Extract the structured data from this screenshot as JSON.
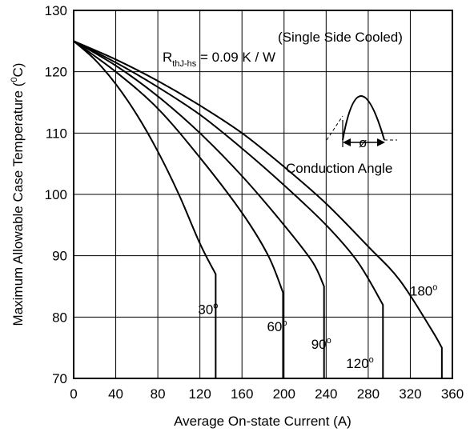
{
  "chart_data": {
    "type": "line",
    "xlabel": "Average On-state Current (A)",
    "ylabel": "Maximum Allowable Case Temperature",
    "ylabel_unit": "C",
    "ylabel_unit_sup": "0",
    "xlim": [
      0,
      360
    ],
    "ylim": [
      70,
      130
    ],
    "x_ticks": [
      "0",
      "40",
      "80",
      "120",
      "160",
      "200",
      "240",
      "280",
      "320",
      "360"
    ],
    "y_ticks": [
      "70",
      "80",
      "90",
      "100",
      "110",
      "120",
      "130"
    ],
    "grid": true,
    "annotation_cooled": "(Single Side Cooled)",
    "rth_symbol": "R",
    "rth_sub": "thJ-hs",
    "rth_value": " = 0.09 K / W",
    "conduction_symbol": "ø",
    "conduction_label": "Conduction Angle",
    "series": [
      {
        "name": "30",
        "sup": "o",
        "x": [
          0,
          20,
          40,
          60,
          80,
          100,
          120,
          135,
          135
        ],
        "y": [
          125,
          122,
          118,
          113,
          107,
          100,
          92,
          87,
          70
        ]
      },
      {
        "name": "60",
        "sup": "o",
        "x": [
          0,
          40,
          80,
          120,
          160,
          185,
          199,
          199
        ],
        "y": [
          125,
          120,
          114,
          106,
          97,
          90,
          84,
          70
        ]
      },
      {
        "name": "90",
        "sup": "o",
        "x": [
          0,
          40,
          80,
          120,
          160,
          200,
          227,
          238,
          238
        ],
        "y": [
          125,
          121,
          116,
          110,
          103,
          95,
          89,
          85,
          70
        ]
      },
      {
        "name": "120",
        "sup": "o",
        "x": [
          0,
          40,
          80,
          120,
          160,
          200,
          240,
          270,
          294,
          294
        ],
        "y": [
          125,
          121.5,
          117.5,
          113,
          107.5,
          101.5,
          95,
          89,
          82,
          70
        ]
      },
      {
        "name": "180",
        "sup": "o",
        "x": [
          0,
          40,
          80,
          120,
          160,
          200,
          240,
          280,
          310,
          340,
          350,
          350
        ],
        "y": [
          125,
          122,
          118.5,
          114.5,
          110,
          104.5,
          98.5,
          91.5,
          86,
          78,
          75,
          70
        ]
      }
    ]
  }
}
